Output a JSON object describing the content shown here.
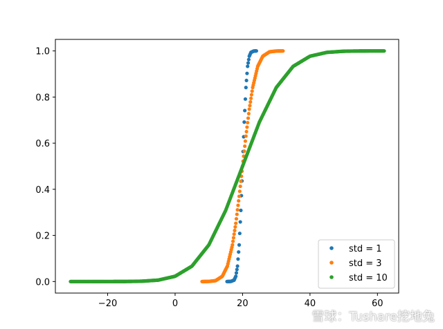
{
  "chart_data": {
    "type": "scatter",
    "title": "",
    "xlabel": "",
    "ylabel": "",
    "xlim": [
      -35.5,
      66.3
    ],
    "ylim": [
      -0.05,
      1.05
    ],
    "xticks": [
      -20,
      0,
      20,
      40,
      60
    ],
    "xtick_labels": [
      "−20",
      "0",
      "20",
      "40",
      "60"
    ],
    "yticks": [
      0.0,
      0.2,
      0.4,
      0.6,
      0.8,
      1.0
    ],
    "ytick_labels": [
      "0.0",
      "0.2",
      "0.4",
      "0.6",
      "0.8",
      "1.0"
    ],
    "grid": false,
    "legend_position": "lower-right",
    "series": [
      {
        "name": "std = 1",
        "color": "#1f77b4",
        "x": [
          15.4,
          16.5,
          17.5,
          18.0,
          18.5,
          19.0,
          19.5,
          20.0,
          20.5,
          21.0,
          21.5,
          22.0,
          22.5,
          23.3,
          24.1
        ],
        "y": [
          0.0,
          0.0004,
          0.0062,
          0.0228,
          0.0668,
          0.1587,
          0.3085,
          0.5,
          0.6915,
          0.8413,
          0.9332,
          0.9772,
          0.9938,
          0.9995,
          1.0
        ]
      },
      {
        "name": "std = 3",
        "color": "#ff7f0e",
        "x": [
          8.0,
          10.0,
          12.0,
          14.0,
          15.5,
          17.0,
          18.0,
          19.0,
          20.0,
          21.0,
          22.0,
          23.0,
          24.5,
          26.0,
          28.0,
          30.0,
          32.0
        ],
        "y": [
          0.0,
          0.0004,
          0.0038,
          0.0228,
          0.0668,
          0.1587,
          0.2525,
          0.3694,
          0.5,
          0.6306,
          0.7475,
          0.8413,
          0.9332,
          0.9772,
          0.9962,
          0.9996,
          1.0
        ]
      },
      {
        "name": "std = 10",
        "color": "#2ca02c",
        "x": [
          -31.0,
          -24.5,
          -23.0,
          -21.5,
          -18.0,
          -15.0,
          -10.0,
          -5.0,
          0.0,
          5.0,
          10.0,
          15.0,
          20.0,
          25.0,
          30.0,
          35.0,
          40.0,
          45.0,
          50.0,
          55.0,
          57.0,
          62.0
        ],
        "y": [
          0.0,
          0.0,
          0.0,
          0.0,
          0.0001,
          0.0002,
          0.0013,
          0.0062,
          0.0228,
          0.0668,
          0.1587,
          0.3085,
          0.5,
          0.6915,
          0.8413,
          0.9332,
          0.9772,
          0.9938,
          0.9987,
          0.9998,
          0.9999,
          1.0
        ]
      }
    ]
  },
  "watermark": {
    "text": "雪球：Tushare挖地兔"
  }
}
